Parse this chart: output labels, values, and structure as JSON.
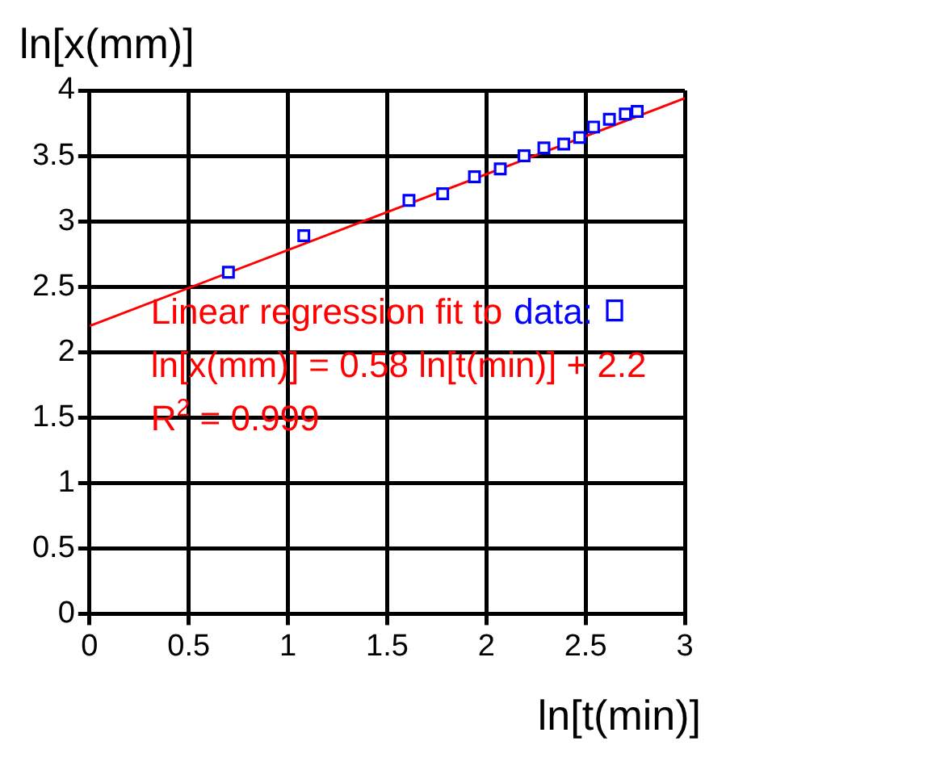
{
  "chart_data": {
    "type": "scatter",
    "xlabel": "ln[t(min)]",
    "ylabel": "ln[x(mm)]",
    "xlim": [
      0,
      3
    ],
    "xticks": [
      0,
      0.5,
      1,
      1.5,
      2,
      2.5,
      3
    ],
    "ylim": [
      0,
      4
    ],
    "yticks": [
      0,
      0.5,
      1,
      1.5,
      2,
      2.5,
      3,
      3.5,
      4
    ],
    "grid": true,
    "legend": "center",
    "series": [
      {
        "name": "data:",
        "color": "#0000ff",
        "marker": "square",
        "x": [
          0.7,
          1.08,
          1.61,
          1.78,
          1.94,
          2.07,
          2.19,
          2.29,
          2.39,
          2.47,
          2.54,
          2.62,
          2.7,
          2.76
        ],
        "values": [
          2.61,
          2.89,
          3.16,
          3.21,
          3.34,
          3.4,
          3.5,
          3.56,
          3.59,
          3.64,
          3.72,
          3.78,
          3.82,
          3.84
        ]
      },
      {
        "name": "Linear regression fit to",
        "type": "line",
        "color": "#ff0000",
        "marker": "none",
        "x": [
          0,
          3
        ],
        "values": [
          2.2,
          3.94
        ]
      }
    ],
    "annotations": [
      "ln[x(mm)] = 0.58 ln[t(min)] + 2.2",
      "R$^{2}$ = 0.999"
    ]
  }
}
